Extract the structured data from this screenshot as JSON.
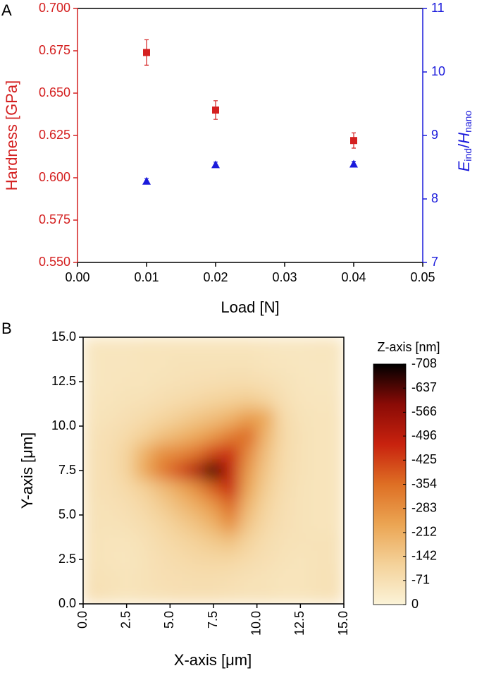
{
  "chart_data": [
    {
      "type": "scatter",
      "panel": "A",
      "xlabel": "Load [N]",
      "ylabel": "Hardness [GPa]",
      "y2label": [
        "E",
        "ind",
        "/",
        "H",
        "nano"
      ],
      "xlim": [
        0,
        0.05
      ],
      "xticks": [
        {
          "value": 0,
          "label": "0.00"
        },
        0.01,
        0.02,
        0.03,
        0.04,
        0.05
      ],
      "ylim": [
        0.55,
        0.7
      ],
      "yticks": [
        {
          "value": 0.55,
          "label": "0.550"
        },
        0.575,
        {
          "value": 0.6,
          "label": "0.600"
        },
        0.625,
        {
          "value": 0.65,
          "label": "0.650"
        },
        0.675,
        {
          "value": 0.7,
          "label": "0.700"
        }
      ],
      "y2lim": [
        7,
        11
      ],
      "y2ticks": [
        7,
        8,
        9,
        10,
        11
      ],
      "ycolor": "#d42020",
      "y2color": "#1a1adb",
      "series": [
        {
          "color": "#d42020",
          "marker": "square",
          "x": [
            0.01,
            0.02,
            0.04
          ],
          "values": [
            0.674,
            0.64,
            0.622
          ],
          "errors": [
            0.0075,
            0.0055,
            0.0045
          ]
        },
        {
          "color": "#1a1adb",
          "marker": "triangle",
          "axis": "y2",
          "x": [
            0.01,
            0.02,
            0.04
          ],
          "values": [
            8.28,
            8.54,
            8.55
          ],
          "errors": [
            0.04,
            0.04,
            0.04
          ]
        }
      ]
    },
    {
      "type": "heatmap",
      "panel": "B",
      "xlabel": "X-axis [μm]",
      "ylabel": "Y-axis [μm]",
      "zlabel": "Z-axis [nm]",
      "xlim": [
        0,
        15
      ],
      "xticks": [
        {
          "value": 0,
          "label": "0.0"
        },
        2.5,
        {
          "value": 5,
          "label": "5.0"
        },
        7.5,
        {
          "value": 10,
          "label": "10.0"
        },
        12.5,
        {
          "value": 15,
          "label": "15.0"
        }
      ],
      "ylim": [
        0,
        15
      ],
      "yticks": [
        {
          "value": 0,
          "label": "0.0"
        },
        2.5,
        {
          "value": 5,
          "label": "5.0"
        },
        7.5,
        {
          "value": 10,
          "label": "10.0"
        },
        12.5,
        {
          "value": 15,
          "label": "15.0"
        }
      ],
      "zlim": [
        -708,
        0
      ],
      "zticks": [
        -708,
        -637,
        -566,
        -496,
        -425,
        -354,
        -283,
        -212,
        -142,
        -71,
        0
      ],
      "colormap": [
        "#fbf3d8",
        "#f4d29a",
        "#eba553",
        "#de6f24",
        "#c8220e",
        "#8a0b06",
        "#000000"
      ],
      "x": [
        0.5,
        1.5,
        2.5,
        3.5,
        4.5,
        5.5,
        6.5,
        7.5,
        8.5,
        9.5,
        10.5,
        11.5,
        12.5,
        13.5,
        14.5
      ],
      "y": [
        0.5,
        1.5,
        2.5,
        3.5,
        4.5,
        5.5,
        6.5,
        7.5,
        8.5,
        9.5,
        10.5,
        11.5,
        12.5,
        13.5,
        14.5
      ],
      "z": [
        [
          -70,
          -60,
          -55,
          -60,
          -65,
          -70,
          -70,
          -70,
          -65,
          -60,
          -60,
          -55,
          -55,
          -60,
          -65
        ],
        [
          -65,
          -60,
          -55,
          -60,
          -70,
          -75,
          -80,
          -80,
          -75,
          -65,
          -60,
          -55,
          -55,
          -60,
          -65
        ],
        [
          -60,
          -55,
          -50,
          -60,
          -75,
          -85,
          -95,
          -100,
          -100,
          -85,
          -70,
          -60,
          -55,
          -60,
          -60
        ],
        [
          -60,
          -55,
          -55,
          -65,
          -85,
          -100,
          -120,
          -140,
          -160,
          -110,
          -80,
          -65,
          -60,
          -60,
          -60
        ],
        [
          -60,
          -60,
          -65,
          -80,
          -100,
          -130,
          -160,
          -200,
          -280,
          -150,
          -95,
          -70,
          -60,
          -55,
          -55
        ],
        [
          -60,
          -65,
          -75,
          -95,
          -130,
          -170,
          -210,
          -260,
          -360,
          -190,
          -110,
          -75,
          -60,
          -55,
          -55
        ],
        [
          -65,
          -70,
          -90,
          -120,
          -170,
          -220,
          -280,
          -380,
          -470,
          -230,
          -130,
          -80,
          -60,
          -55,
          -55
        ],
        [
          -65,
          -75,
          -110,
          -220,
          -320,
          -400,
          -520,
          -708,
          -480,
          -260,
          -150,
          -85,
          -65,
          -55,
          -55
        ],
        [
          -65,
          -75,
          -110,
          -200,
          -280,
          -300,
          -340,
          -420,
          -460,
          -300,
          -170,
          -90,
          -65,
          -55,
          -55
        ],
        [
          -60,
          -70,
          -90,
          -120,
          -160,
          -190,
          -220,
          -260,
          -320,
          -360,
          -200,
          -95,
          -65,
          -55,
          -55
        ],
        [
          -55,
          -60,
          -70,
          -85,
          -105,
          -125,
          -150,
          -170,
          -200,
          -250,
          -230,
          -90,
          -60,
          -55,
          -55
        ],
        [
          -50,
          -55,
          -60,
          -65,
          -75,
          -85,
          -95,
          -110,
          -120,
          -130,
          -110,
          -70,
          -55,
          -50,
          -50
        ],
        [
          -45,
          -50,
          -55,
          -55,
          -60,
          -65,
          -70,
          -75,
          -80,
          -80,
          -70,
          -60,
          -50,
          -45,
          -45
        ],
        [
          -45,
          -50,
          -50,
          -55,
          -55,
          -60,
          -60,
          -60,
          -60,
          -60,
          -55,
          -50,
          -45,
          -45,
          -45
        ],
        [
          -50,
          -50,
          -50,
          -55,
          -55,
          -55,
          -55,
          -55,
          -55,
          -55,
          -50,
          -45,
          -45,
          -50,
          -50
        ]
      ]
    }
  ]
}
